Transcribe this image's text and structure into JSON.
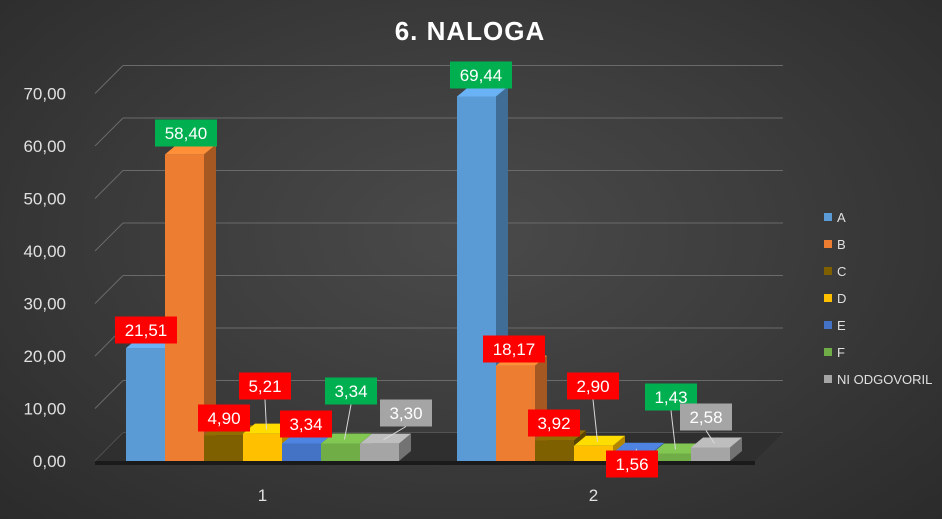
{
  "chart_data": {
    "type": "bar",
    "title": "6. NALOGA",
    "categories": [
      "1",
      "2"
    ],
    "ylim": [
      0,
      70
    ],
    "yticks": [
      "0,00",
      "10,00",
      "20,00",
      "30,00",
      "40,00",
      "50,00",
      "60,00",
      "70,00"
    ],
    "grid": true,
    "legend_position": "right",
    "series": [
      {
        "name": "A",
        "color": "#5b9bd5",
        "values": [
          21.51,
          69.44
        ],
        "labels": [
          "21,51",
          "69,44"
        ],
        "label_bg": [
          "#ff0000",
          "#00b050"
        ]
      },
      {
        "name": "B",
        "color": "#ed7d31",
        "values": [
          58.4,
          18.17
        ],
        "labels": [
          "58,40",
          "18,17"
        ],
        "label_bg": [
          "#00b050",
          "#ff0000"
        ]
      },
      {
        "name": "C",
        "color": "#7f6000",
        "values": [
          4.9,
          3.92
        ],
        "labels": [
          "4,90",
          "3,92"
        ],
        "label_bg": [
          "#ff0000",
          "#ff0000"
        ]
      },
      {
        "name": "D",
        "color": "#ffc000",
        "values": [
          5.21,
          2.9
        ],
        "labels": [
          "5,21",
          "2,90"
        ],
        "label_bg": [
          "#ff0000",
          "#ff0000"
        ]
      },
      {
        "name": "E",
        "color": "#4472c4",
        "values": [
          3.34,
          1.56
        ],
        "labels": [
          "3,34",
          "1,56"
        ],
        "label_bg": [
          "#ff0000",
          "#ff0000"
        ]
      },
      {
        "name": "F",
        "color": "#70ad47",
        "values": [
          3.34,
          1.43
        ],
        "labels": [
          "3,34",
          "1,43"
        ],
        "label_bg": [
          "#00b050",
          "#00b050"
        ]
      },
      {
        "name": "NI ODGOVORIL",
        "color": "#a5a5a5",
        "values": [
          3.3,
          2.58
        ],
        "labels": [
          "3,30",
          "2,58"
        ],
        "label_bg": [
          "#a5a5a5",
          "#a5a5a5"
        ]
      }
    ]
  }
}
